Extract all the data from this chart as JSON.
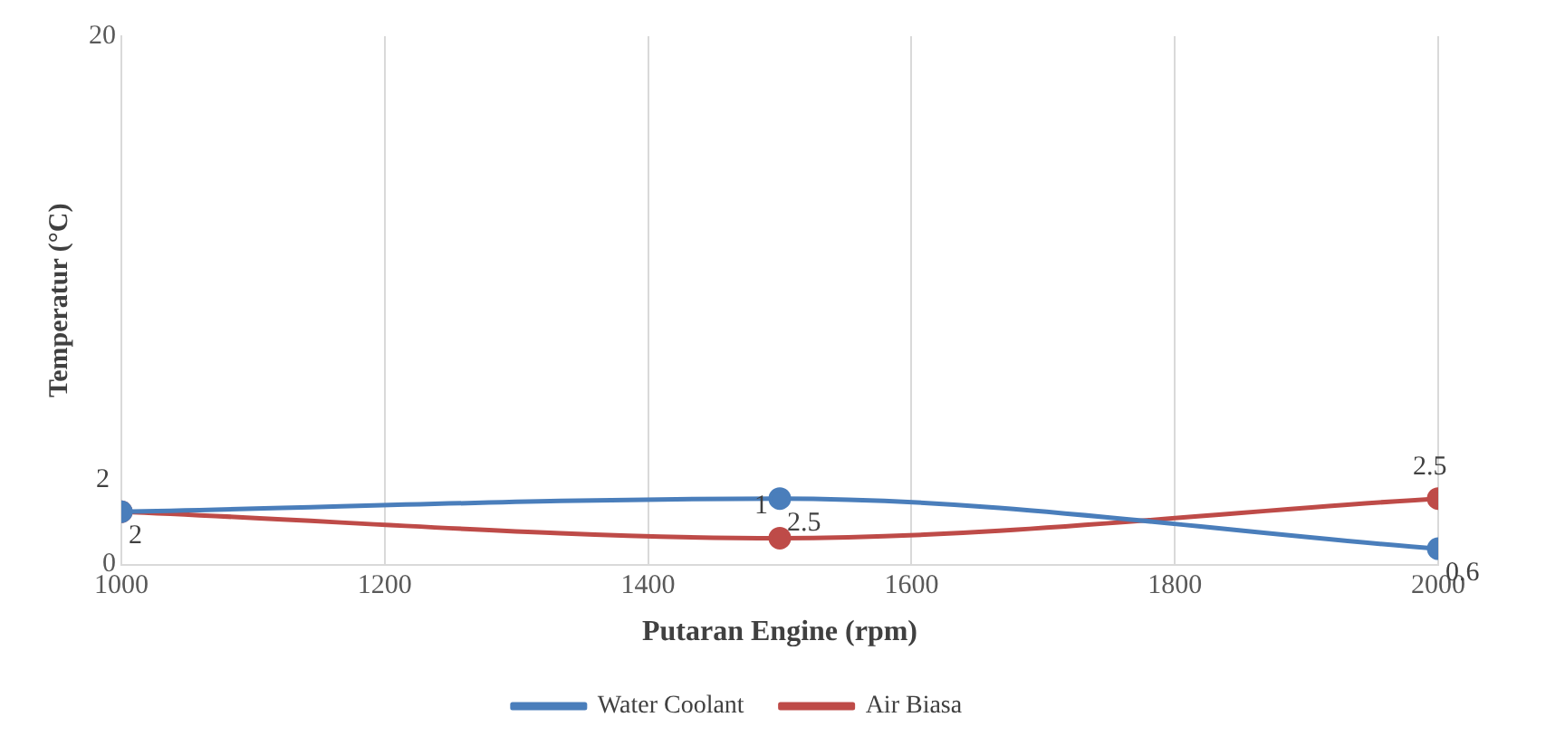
{
  "chart_data": {
    "type": "line",
    "xlabel": "Putaran Engine (rpm)",
    "ylabel": "Temperatur (°C)",
    "x": [
      1000,
      1500,
      2000
    ],
    "series": [
      {
        "name": "Water Coolant",
        "color": "#4a7ebb",
        "values": [
          2,
          2.5,
          0.6
        ]
      },
      {
        "name": "Air Biasa",
        "color": "#be4b48",
        "values": [
          2,
          1,
          2.5
        ]
      }
    ],
    "xlim": [
      1000,
      2000
    ],
    "xticks": [
      1000,
      1200,
      1400,
      1600,
      1800,
      2000
    ],
    "ylim": [
      0,
      20
    ],
    "yticks": [
      0,
      20
    ],
    "grid": "x",
    "legend": "bottom",
    "marker": "circle",
    "line_style": "solid",
    "data_labels": true
  }
}
